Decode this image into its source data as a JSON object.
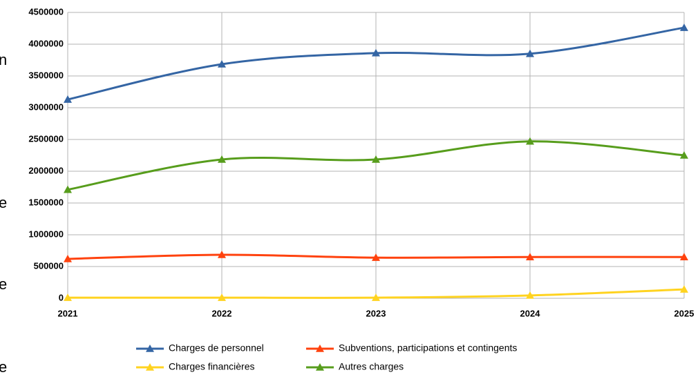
{
  "chart_data": {
    "type": "line",
    "categories": [
      "2021",
      "2022",
      "2023",
      "2024",
      "2025"
    ],
    "series": [
      {
        "name": "Charges de personnel",
        "color": "#3465a4",
        "values": [
          3130000,
          3685000,
          3860000,
          3850000,
          4260000
        ]
      },
      {
        "name": "Subventions, participations et contingents",
        "color": "#ff420e",
        "values": [
          620000,
          685000,
          640000,
          650000,
          650000
        ]
      },
      {
        "name": "Charges financières",
        "color": "#ffd320",
        "values": [
          10000,
          10000,
          10000,
          45000,
          140000
        ]
      },
      {
        "name": "Autres charges",
        "color": "#579d1c",
        "values": [
          1710000,
          2185000,
          2185000,
          2470000,
          2250000
        ]
      }
    ],
    "ylim": [
      0,
      4500000
    ],
    "yticks": [
      0,
      500000,
      1000000,
      1500000,
      2000000,
      2500000,
      3000000,
      3500000,
      4000000,
      4500000
    ],
    "grid": true,
    "smooth": true,
    "legend": "bottom"
  },
  "background_fragments": [
    "n",
    "e",
    "e",
    "e"
  ]
}
